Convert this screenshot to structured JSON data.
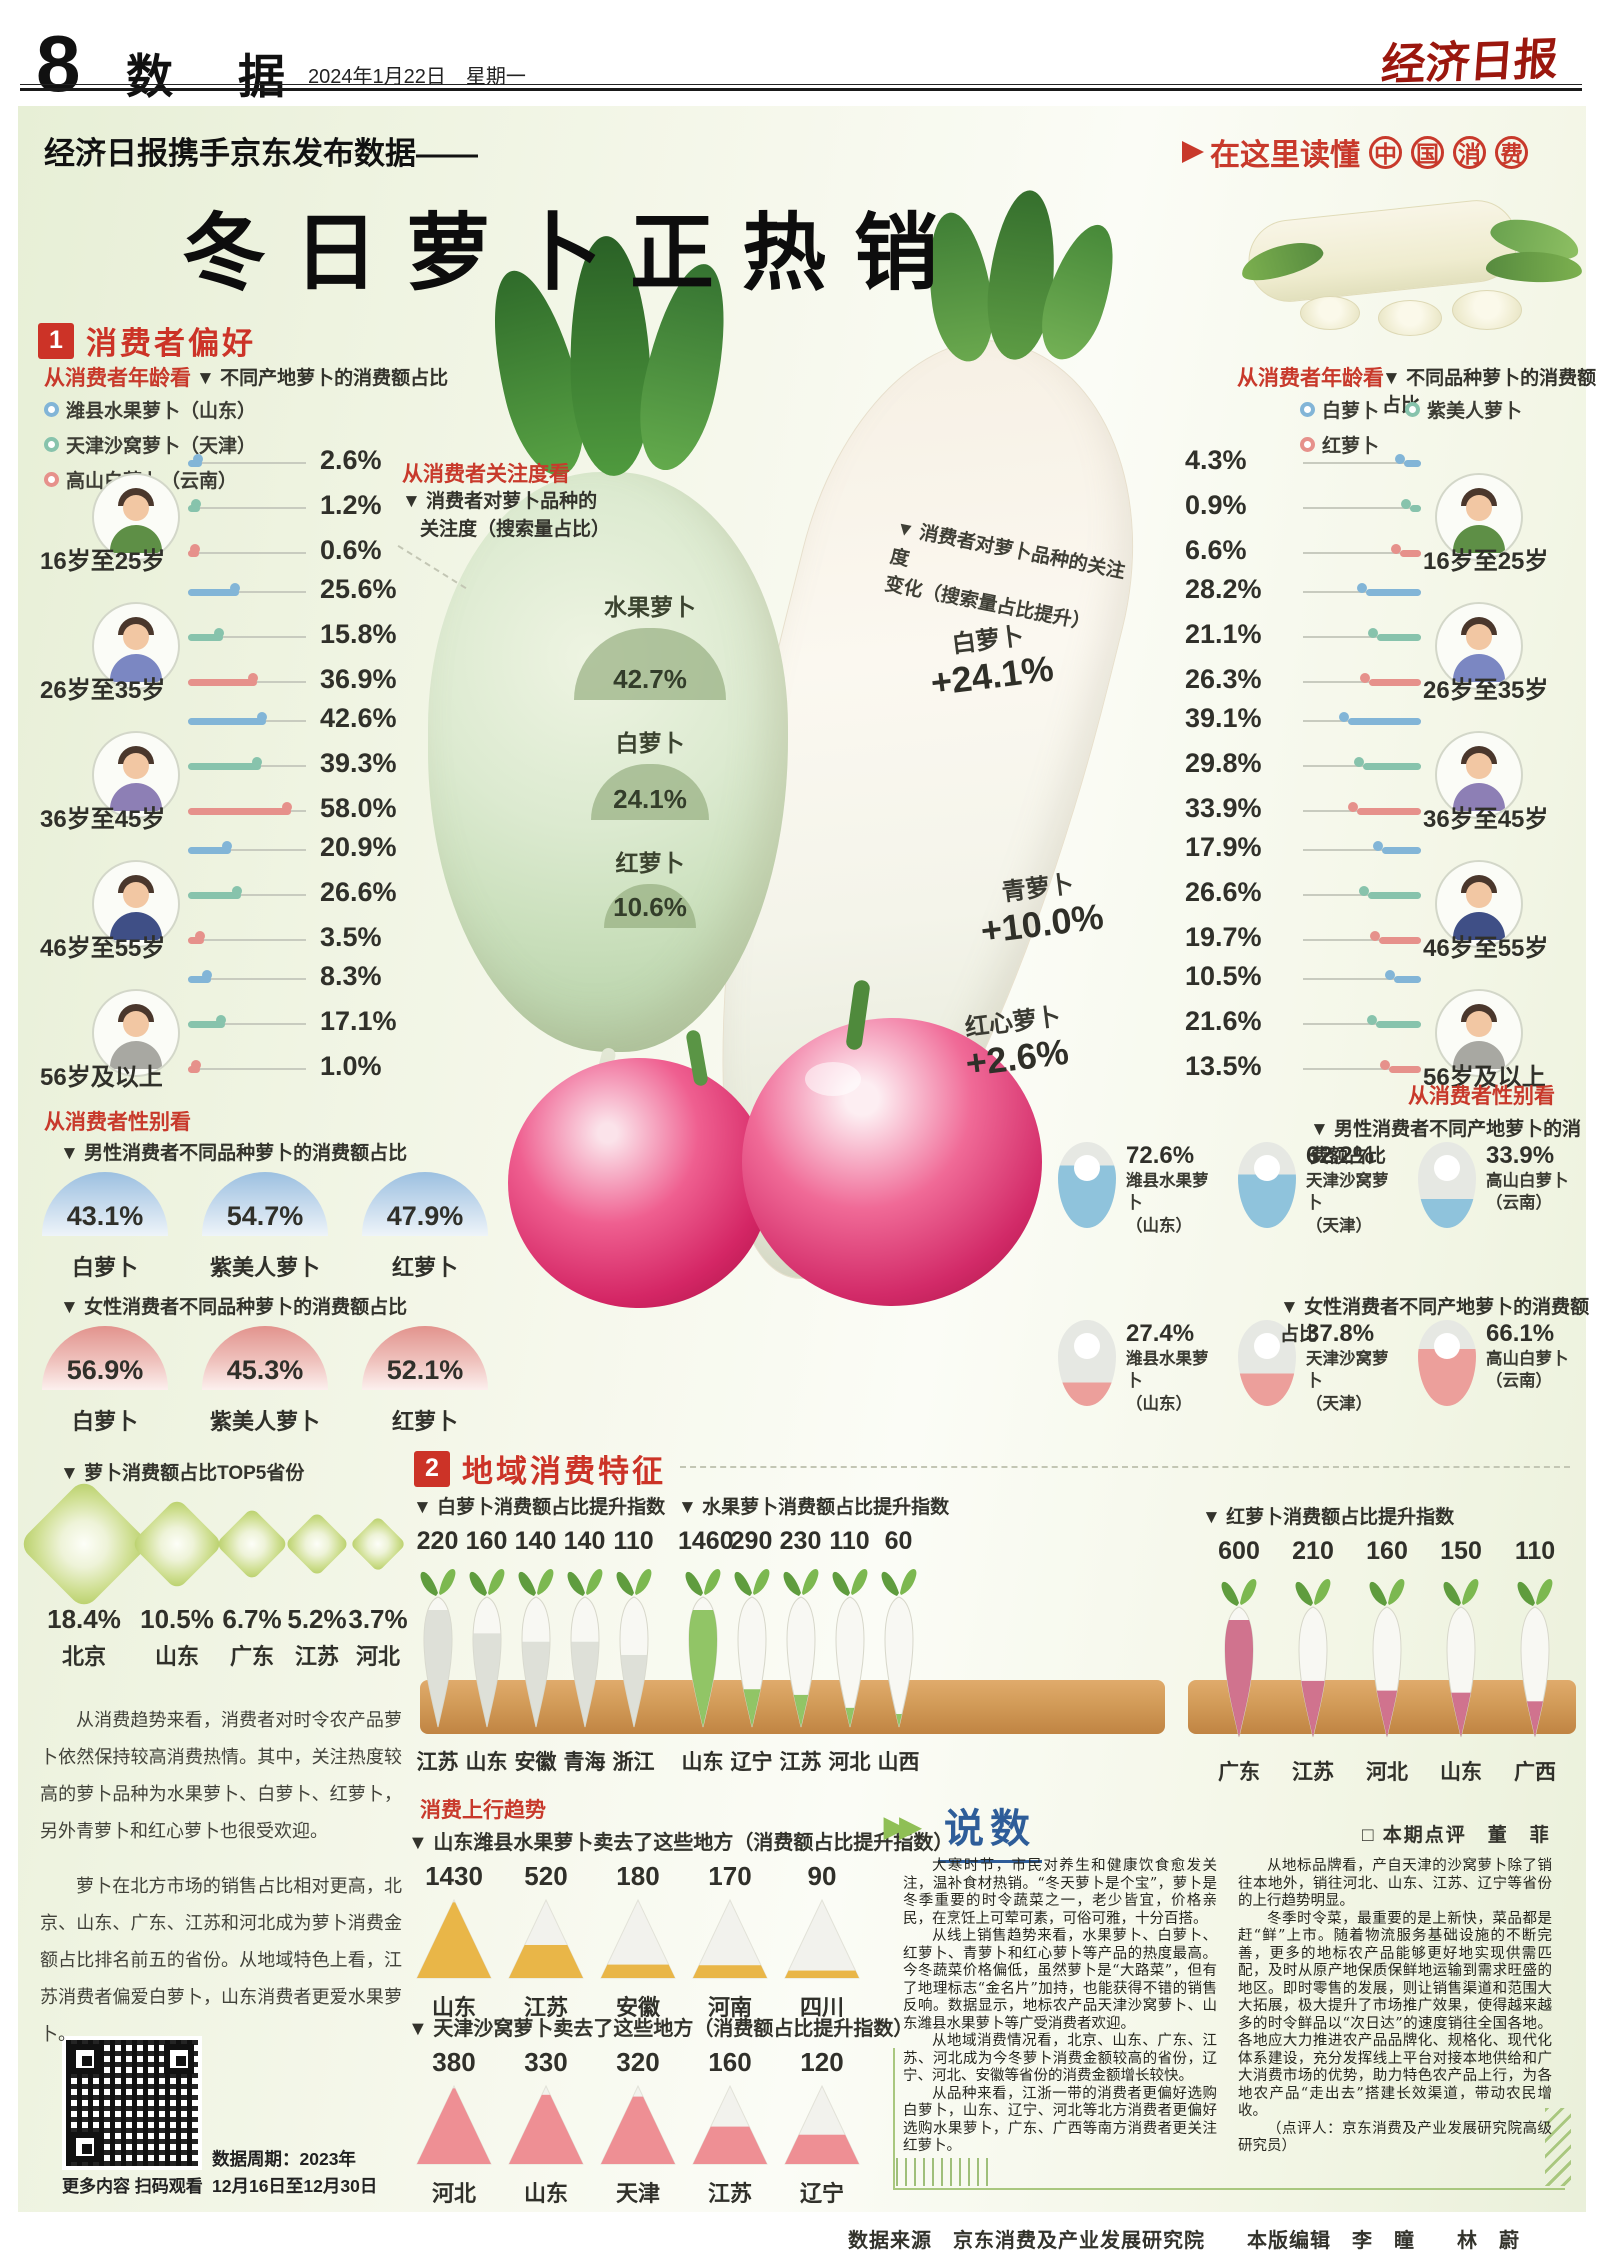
{
  "accent_color": "#c8392b",
  "page": {
    "page_no": "8",
    "section_name": "数 据",
    "date": "2024年1月22日",
    "weekday": "星期一",
    "masthead": "经济日报"
  },
  "banner": {
    "kicker": "经济日报携手京东发布数据——",
    "slogan_text": "在这里读懂",
    "slogan_circled": [
      "中",
      "国",
      "消",
      "费"
    ],
    "main_title": "冬日萝卜正热销"
  },
  "section1": {
    "num": "1",
    "title": "消费者偏好",
    "age_left": {
      "red_label": "从消费者年龄看",
      "subtitle": "▼ 不同产地萝卜的消费额占比",
      "legend": [
        {
          "label": "潍县水果萝卜（山东）",
          "color": "#82b5d7"
        },
        {
          "label": "天津沙窝萝卜（天津）",
          "color": "#87c3ac"
        },
        {
          "label": "高山白萝卜（云南）",
          "color": "#e6918b"
        }
      ],
      "groups": [
        {
          "label": "16岁至25岁",
          "values": [
            2.6,
            1.2,
            0.6
          ]
        },
        {
          "label": "26岁至35岁",
          "values": [
            25.6,
            15.8,
            36.9
          ]
        },
        {
          "label": "36岁至45岁",
          "values": [
            42.6,
            39.3,
            58.0
          ]
        },
        {
          "label": "46岁至55岁",
          "values": [
            20.9,
            26.6,
            3.5
          ]
        },
        {
          "label": "56岁及以上",
          "values": [
            8.3,
            17.1,
            1.0
          ]
        }
      ]
    },
    "age_right": {
      "red_label": "从消费者年龄看",
      "subtitle": "▼ 不同品种萝卜的消费额占比",
      "legend": [
        {
          "label": "白萝卜",
          "color": "#82b5d7"
        },
        {
          "label": "紫美人萝卜",
          "color": "#87c3ac"
        },
        {
          "label": "红萝卜",
          "color": "#e6918b"
        }
      ],
      "groups": [
        {
          "label": "16岁至25岁",
          "values": [
            4.3,
            0.9,
            6.6
          ]
        },
        {
          "label": "26岁至35岁",
          "values": [
            28.2,
            21.1,
            26.3
          ]
        },
        {
          "label": "36岁至45岁",
          "values": [
            39.1,
            29.8,
            33.9
          ]
        },
        {
          "label": "46岁至55岁",
          "values": [
            17.9,
            26.6,
            19.7
          ]
        },
        {
          "label": "56岁及以上",
          "values": [
            10.5,
            21.6,
            13.5
          ]
        }
      ]
    },
    "attention": {
      "red_label": "从消费者关注度看",
      "subtitle_line1": "▼ 消费者对萝卜品种的",
      "subtitle_line2": "关注度（搜索量占比）",
      "items": [
        {
          "label": "水果萝卜",
          "value": "42.7%"
        },
        {
          "label": "白萝卜",
          "value": "24.1%"
        },
        {
          "label": "红萝卜",
          "value": "10.6%"
        }
      ]
    },
    "attention_change": {
      "subtitle_line1": "▼ 消费者对萝卜品种的关注度",
      "subtitle_line2": "变化（搜索量占比提升）",
      "items": [
        {
          "label": "白萝卜",
          "value": "+24.1%"
        },
        {
          "label": "青萝卜",
          "value": "+10.0%"
        },
        {
          "label": "红心萝卜",
          "value": "+2.6%"
        }
      ]
    },
    "gender_left": {
      "red_label": "从消费者性别看",
      "male_title": "▼ 男性消费者不同品种萝卜的消费额占比",
      "male": [
        {
          "label": "白萝卜",
          "value": "43.1%"
        },
        {
          "label": "紫美人萝卜",
          "value": "54.7%"
        },
        {
          "label": "红萝卜",
          "value": "47.9%"
        }
      ],
      "female_title": "▼ 女性消费者不同品种萝卜的消费额占比",
      "female": [
        {
          "label": "白萝卜",
          "value": "56.9%"
        },
        {
          "label": "紫美人萝卜",
          "value": "45.3%"
        },
        {
          "label": "红萝卜",
          "value": "52.1%"
        }
      ]
    },
    "gender_right": {
      "red_label": "从消费者性别看",
      "male_title": "▼ 男性消费者不同产地萝卜的消费额占比",
      "male_color": "#8fc3dc",
      "female_color": "#ec9f9b",
      "male": [
        {
          "value": 72.6,
          "name": "潍县水果萝卜",
          "origin": "（山东）"
        },
        {
          "value": 62.2,
          "name": "天津沙窝萝卜",
          "origin": "（天津）"
        },
        {
          "value": 33.9,
          "name": "高山白萝卜",
          "origin": "（云南）"
        }
      ],
      "female_title": "▼ 女性消费者不同产地萝卜的消费额占比",
      "female": [
        {
          "value": 27.4,
          "name": "潍县水果萝卜",
          "origin": "（山东）"
        },
        {
          "value": 37.8,
          "name": "天津沙窝萝卜",
          "origin": "（天津）"
        },
        {
          "value": 66.1,
          "name": "高山白萝卜",
          "origin": "（云南）"
        }
      ]
    },
    "top5": {
      "title": "▼ 萝卜消费额占比TOP5省份",
      "items": [
        {
          "value": "18.4%",
          "province": "北京"
        },
        {
          "value": "10.5%",
          "province": "山东"
        },
        {
          "value": "6.7%",
          "province": "广东"
        },
        {
          "value": "5.2%",
          "province": "江苏"
        },
        {
          "value": "3.7%",
          "province": "河北"
        }
      ]
    },
    "paragraphs": [
      "从消费趋势来看，消费者对时令农产品萝卜依然保持较高消费热情。其中，关注热度较高的萝卜品种为水果萝卜、白萝卜、红萝卜，另外青萝卜和红心萝卜也很受欢迎。",
      "萝卜在北方市场的销售占比相对更高，北京、山东、广东、江苏和河北成为萝卜消费金额占比排名前五的省份。从地域特色上看，江苏消费者偏爱白萝卜，山东消费者更爱水果萝卜。"
    ]
  },
  "section2": {
    "num": "2",
    "title": "地域消费特征",
    "charts": [
      {
        "title": "▼ 白萝卜消费额占比提升指数",
        "fill": "#d9dcd4",
        "values": [
          220,
          160,
          140,
          140,
          110
        ],
        "provinces": [
          "江苏",
          "山东",
          "安徽",
          "青海",
          "浙江"
        ]
      },
      {
        "title": "▼ 水果萝卜消费额占比提升指数",
        "fill": "#82bd52",
        "values": [
          1460,
          290,
          230,
          110,
          60
        ],
        "provinces": [
          "山东",
          "辽宁",
          "江苏",
          "河北",
          "山西"
        ]
      },
      {
        "title": "▼ 红萝卜消费额占比提升指数",
        "fill": "#c9607f",
        "values": [
          600,
          210,
          160,
          150,
          110
        ],
        "provinces": [
          "广东",
          "江苏",
          "河北",
          "山东",
          "广西"
        ]
      }
    ]
  },
  "uptrend": {
    "red_label": "消费上行趋势",
    "charts": [
      {
        "title": "▼ 山东潍县水果萝卜卖去了这些地方（消费额占比提升指数）",
        "fill": "#e9b648",
        "values": [
          1430,
          520,
          180,
          170,
          90
        ],
        "provinces": [
          "山东",
          "江苏",
          "安徽",
          "河南",
          "四川"
        ]
      },
      {
        "title": "▼ 天津沙窝萝卜卖去了这些地方（消费额占比提升指数）",
        "fill": "#ee8f94",
        "values": [
          380,
          330,
          320,
          160,
          120
        ],
        "provinces": [
          "河北",
          "山东",
          "天津",
          "江苏",
          "辽宁"
        ]
      }
    ]
  },
  "commentary": {
    "title": "说数",
    "byline": "□ 本期点评　董　菲",
    "left_paragraphs": [
      "大寒时节，市民对养生和健康饮食愈发关注，温补食材热销。“冬天萝卜是个宝”，萝卜是冬季重要的时令蔬菜之一，老少皆宜，价格亲民，在烹饪上可荤可素，可俗可雅，十分百搭。",
      "从线上销售趋势来看，水果萝卜、白萝卜、红萝卜、青萝卜和红心萝卜等产品的热度最高。今冬蔬菜价格偏低，虽然萝卜是“大路菜”，但有了地理标志“金名片”加持，也能获得不错的销售反响。数据显示，地标农产品天津沙窝萝卜、山东潍县水果萝卜等广受消费者欢迎。",
      "从地域消费情况看，北京、山东、广东、江苏、河北成为今冬萝卜消费金额较高的省份，辽宁、河北、安徽等省份的消费金额增长较快。",
      "从品种来看，江浙一带的消费者更偏好选购白萝卜，山东、辽宁、河北等北方消费者更偏好选购水果萝卜，广东、广西等南方消费者更关注红萝卜。"
    ],
    "right_paragraphs": [
      "从地标品牌看，产自天津的沙窝萝卜除了销往本地外，销往河北、山东、江苏、辽宁等省份的上行趋势明显。",
      "冬季时令菜，最重要的是上新快，菜品都是赶“鲜”上市。随着物流服务基础设施的不断完善，更多的地标农产品能够更好地实现供需匹配，及时从原产地保质保鲜地运输到需求旺盛的地区。即时零售的发展，则让销售渠道和范围大大拓展，极大提升了市场推广效果，使得越来越多的时令鲜品以“次日达”的速度销往全国各地。各地应大力推进农产品品牌化、规格化、现代化体系建设，充分发挥线上平台对接本地供给和广大消费市场的优势，助力特色农产品上行，为各地农产品“走出去”搭建长效渠道，带动农民增收。",
      "（点评人：京东消费及产业发展研究院高级研究员）"
    ]
  },
  "qr": {
    "caption": "更多内容 扫码观看",
    "period_line1": "数据周期：2023年",
    "period_line2": "12月16日至12月30日"
  },
  "footer": {
    "text": "数据来源　京东消费及产业发展研究院　　本版编辑　李　瞳　　林　蔚"
  }
}
